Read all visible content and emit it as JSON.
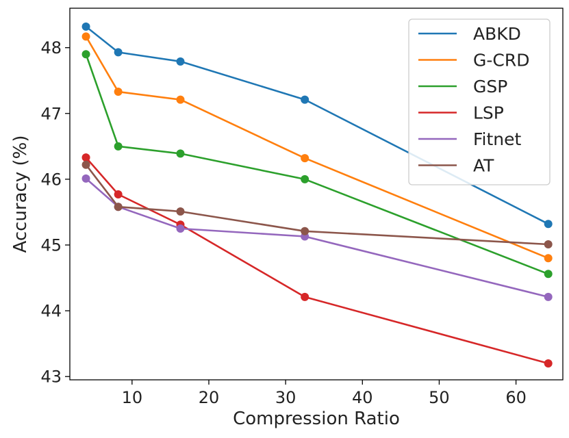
{
  "chart_data": {
    "type": "line",
    "title": "",
    "xlabel": "Compression Ratio",
    "ylabel": "Accuracy (%)",
    "xlim": [
      1.9,
      66.1
    ],
    "ylim": [
      42.95,
      48.6
    ],
    "xticks": [
      10,
      20,
      30,
      40,
      50,
      60
    ],
    "yticks": [
      43,
      44,
      45,
      46,
      47,
      48
    ],
    "x": [
      4,
      8.2,
      16.3,
      32.5,
      64.2
    ],
    "legend_position": "top-right",
    "series": [
      {
        "name": "ABKD",
        "color": "#1f77b4",
        "values": [
          48.32,
          47.93,
          47.79,
          47.21,
          45.32
        ]
      },
      {
        "name": "G-CRD",
        "color": "#ff7f0e",
        "values": [
          48.17,
          47.33,
          47.21,
          46.32,
          44.8
        ]
      },
      {
        "name": "GSP",
        "color": "#2ca02c",
        "values": [
          47.9,
          46.5,
          46.39,
          46.0,
          44.56
        ]
      },
      {
        "name": "LSP",
        "color": "#d62728",
        "values": [
          46.33,
          45.77,
          45.31,
          44.21,
          43.2
        ]
      },
      {
        "name": "Fitnet",
        "color": "#9467bd",
        "values": [
          46.01,
          45.58,
          45.25,
          45.13,
          44.21
        ]
      },
      {
        "name": "AT",
        "color": "#8c564b",
        "values": [
          46.22,
          45.58,
          45.51,
          45.21,
          45.01
        ]
      }
    ]
  }
}
